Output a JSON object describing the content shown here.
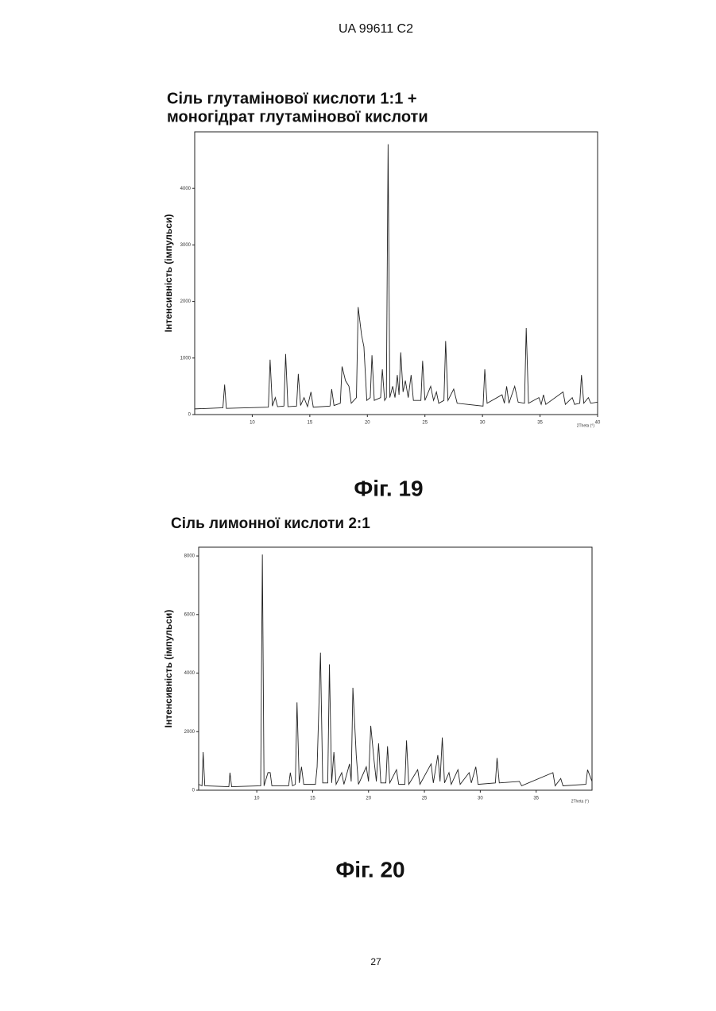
{
  "header": "UA   99611   C2",
  "page_number": "27",
  "chart_data": [
    {
      "type": "line",
      "title": [
        "Сіль глутамінової кислоти 1:1 +",
        "моногідрат глутамінової кислоти"
      ],
      "caption": "Фіг. 19",
      "y_label": "Інтенсивність (імпульси)",
      "x_label": "2Theta (°)",
      "color": "#222222",
      "xlim": [
        5,
        40
      ],
      "xticks": [
        10,
        15,
        20,
        25,
        30,
        35,
        40
      ],
      "ylim": [
        0,
        5000
      ],
      "yticks": [
        0,
        1000,
        2000,
        3000,
        4000
      ],
      "x": [
        5,
        7.45,
        7.6,
        7.75,
        11.4,
        11.55,
        11.75,
        12.0,
        12.2,
        12.75,
        12.9,
        13.1,
        13.85,
        14.0,
        14.2,
        14.5,
        14.8,
        15.1,
        15.3,
        16.75,
        16.9,
        17.1,
        17.65,
        17.8,
        18.1,
        18.4,
        18.6,
        19.05,
        19.2,
        19.5,
        19.7,
        19.95,
        20.25,
        20.4,
        20.6,
        21.15,
        21.3,
        21.5,
        21.65,
        21.8,
        21.95,
        22.2,
        22.4,
        22.6,
        22.75,
        22.9,
        23.1,
        23.3,
        23.55,
        23.8,
        24.0,
        24.65,
        24.8,
        25.0,
        25.5,
        25.75,
        26.0,
        26.2,
        26.65,
        26.8,
        27.0,
        27.5,
        27.8,
        30.05,
        30.2,
        30.4,
        31.7,
        31.9,
        32.1,
        32.3,
        32.8,
        33.1,
        33.65,
        33.8,
        34.0,
        34.9,
        35.1,
        35.3,
        35.5,
        37.0,
        37.2,
        37.8,
        38.0,
        38.45,
        38.6,
        38.8,
        39.2,
        39.4,
        40
      ],
      "values": [
        100,
        120,
        530,
        110,
        130,
        970,
        150,
        300,
        140,
        150,
        1070,
        140,
        150,
        720,
        160,
        300,
        140,
        400,
        130,
        150,
        450,
        160,
        200,
        850,
        600,
        500,
        200,
        300,
        1900,
        1400,
        1200,
        250,
        300,
        1050,
        250,
        300,
        800,
        250,
        300,
        4780,
        300,
        500,
        300,
        700,
        350,
        1100,
        400,
        600,
        300,
        700,
        250,
        250,
        950,
        250,
        500,
        250,
        400,
        200,
        250,
        1300,
        250,
        450,
        200,
        150,
        800,
        200,
        350,
        200,
        500,
        200,
        500,
        220,
        200,
        1530,
        200,
        300,
        180,
        350,
        180,
        400,
        180,
        300,
        180,
        200,
        700,
        200,
        300,
        200,
        220
      ]
    },
    {
      "type": "line",
      "title": [
        "Сіль лимонної кислоти 2:1"
      ],
      "caption": "Фіг. 20",
      "y_label": "Інтенсивність (імпульси)",
      "x_label": "2Theta (°)",
      "color": "#222222",
      "xlim": [
        4.8,
        40
      ],
      "xticks": [
        10,
        15,
        20,
        25,
        30,
        35
      ],
      "ylim": [
        0,
        8300
      ],
      "yticks": [
        0,
        2000,
        4000,
        6000,
        8000
      ],
      "x": [
        4.8,
        5.1,
        5.2,
        5.35,
        7.5,
        7.6,
        7.75,
        10.35,
        10.5,
        10.65,
        11.0,
        11.2,
        11.35,
        12.85,
        13.0,
        13.2,
        13.45,
        13.6,
        13.8,
        14.0,
        14.2,
        15.25,
        15.4,
        15.7,
        15.9,
        16.35,
        16.5,
        16.7,
        16.9,
        17.1,
        17.6,
        17.8,
        18.3,
        18.45,
        18.6,
        18.9,
        19.1,
        19.8,
        20.0,
        20.2,
        20.5,
        20.7,
        20.9,
        21.1,
        21.55,
        21.7,
        21.9,
        22.5,
        22.7,
        23.25,
        23.4,
        23.6,
        24.4,
        24.6,
        25.6,
        25.8,
        26.2,
        26.4,
        26.6,
        26.8,
        27.2,
        27.4,
        28.0,
        28.2,
        29.0,
        29.2,
        29.6,
        29.8,
        31.35,
        31.5,
        31.7,
        33.5,
        33.7,
        36.5,
        36.7,
        37.2,
        37.4,
        39.45,
        39.6,
        40
      ],
      "values": [
        200,
        150,
        1300,
        150,
        120,
        600,
        120,
        150,
        8050,
        150,
        600,
        600,
        150,
        150,
        600,
        150,
        200,
        3000,
        250,
        800,
        200,
        200,
        800,
        4700,
        250,
        250,
        4300,
        250,
        1300,
        200,
        600,
        200,
        900,
        300,
        3500,
        1200,
        200,
        800,
        300,
        2200,
        1000,
        300,
        1600,
        250,
        250,
        1500,
        250,
        700,
        200,
        200,
        1700,
        200,
        700,
        200,
        900,
        250,
        1200,
        300,
        1800,
        250,
        600,
        200,
        700,
        200,
        600,
        250,
        800,
        200,
        250,
        1100,
        250,
        300,
        150,
        600,
        150,
        400,
        150,
        200,
        700,
        300
      ]
    }
  ]
}
